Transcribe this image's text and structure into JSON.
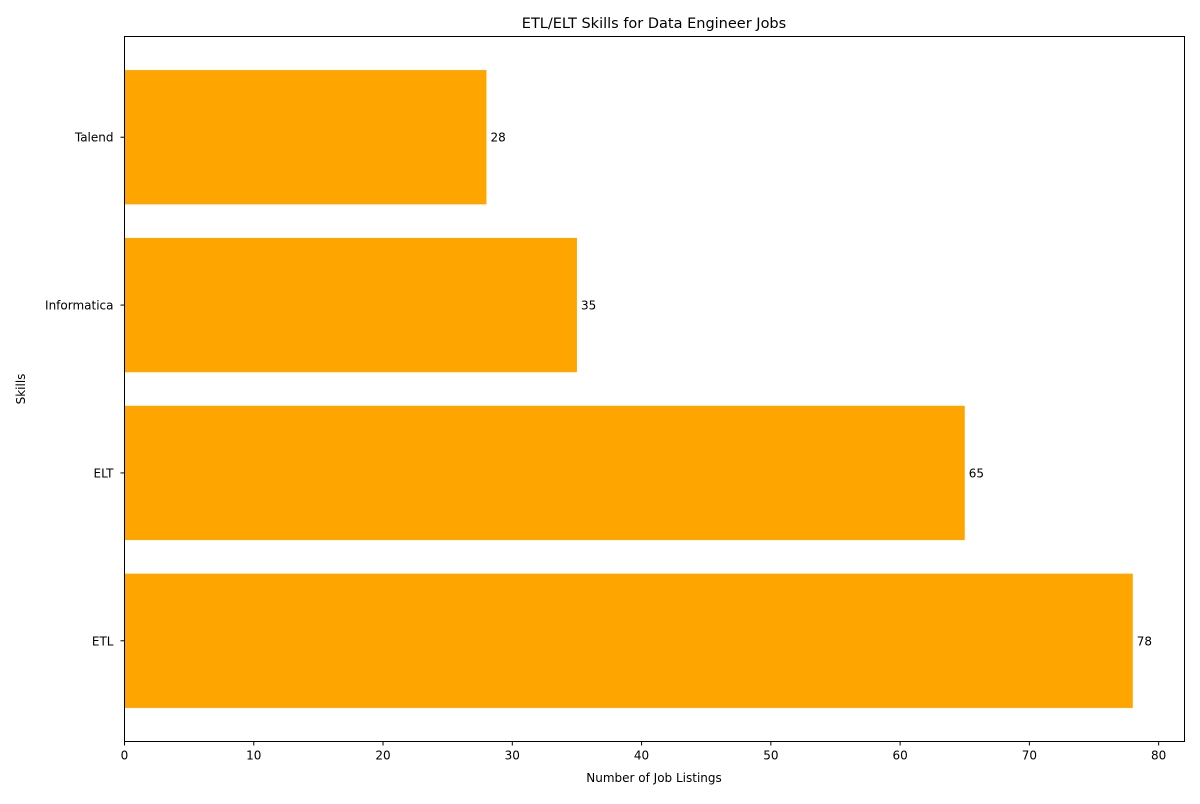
{
  "chart_data": {
    "type": "bar",
    "orientation": "horizontal",
    "title": "ETL/ELT Skills for Data Engineer Jobs",
    "xlabel": "Number of Job Listings",
    "ylabel": "Skills",
    "categories": [
      "ETL",
      "ELT",
      "Informatica",
      "Talend"
    ],
    "values": [
      78,
      65,
      35,
      28
    ],
    "xlim": [
      0,
      82
    ],
    "xticks": [
      0,
      10,
      20,
      30,
      40,
      50,
      60,
      70,
      80
    ],
    "bar_color": "#FFA500",
    "grid": false,
    "legend": false,
    "data_labels": true
  }
}
